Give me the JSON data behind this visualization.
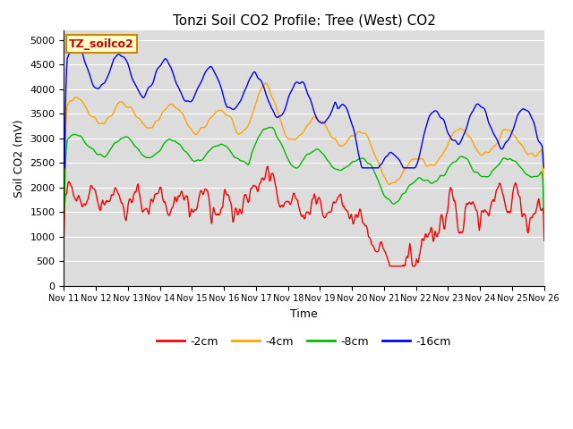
{
  "title": "Tonzi Soil CO2 Profile: Tree (West) CO2",
  "ylabel": "Soil CO2 (mV)",
  "xlabel": "Time",
  "legend_label": "TZ_soilco2",
  "series_labels": [
    "-2cm",
    "-4cm",
    "-8cm",
    "-16cm"
  ],
  "series_colors": [
    "#ff0000",
    "#ffa500",
    "#00bb00",
    "#0000ff"
  ],
  "ylim": [
    0,
    5200
  ],
  "yticks": [
    0,
    500,
    1000,
    1500,
    2000,
    2500,
    3000,
    3500,
    4000,
    4500,
    5000
  ],
  "xtick_labels": [
    "Nov 11",
    "Nov 12",
    "Nov 13",
    "Nov 14",
    "Nov 15",
    "Nov 16",
    "Nov 17",
    "Nov 18",
    "Nov 19",
    "Nov 20",
    "Nov 21",
    "Nov 22",
    "Nov 23",
    "Nov 24",
    "Nov 25",
    "Nov 26"
  ],
  "background_color": "#dcdcdc",
  "title_fontsize": 11,
  "axis_label_fontsize": 9,
  "tick_fontsize": 8,
  "legend_fontsize": 9,
  "linewidth": 1.0,
  "figsize": [
    6.4,
    4.8
  ],
  "dpi": 100
}
